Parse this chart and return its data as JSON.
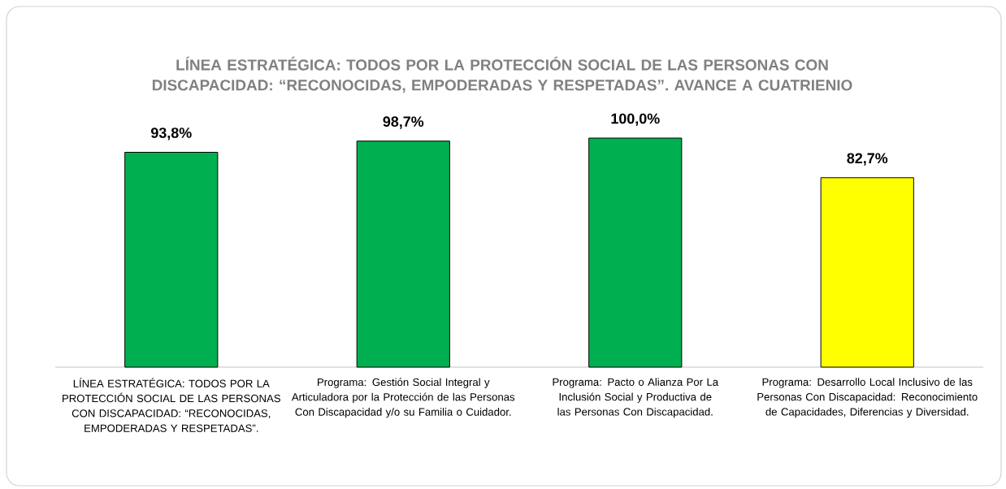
{
  "chart_data": {
    "type": "bar",
    "title": "LÍNEA ESTRATÉGICA: TODOS POR LA PROTECCIÓN SOCIAL DE LAS PERSONAS CON DISCAPACIDAD: “RECONOCIDAS, EMPODERADAS Y RESPETADAS”. AVANCE A CUATRIENIO",
    "categories": [
      "LÍNEA ESTRATÉGICA: TODOS POR LA PROTECCIÓN SOCIAL DE LAS PERSONAS CON DISCAPACIDAD: “RECONOCIDAS, EMPODERADAS Y RESPETADAS”.",
      "Programa: Gestión Social Integral y Articuladora por la Protección de las Personas Con Discapacidad y/o su Familia o Cuidador.",
      "Programa: Pacto o Alianza Por La Inclusión Social y Productiva de las Personas Con Discapacidad.",
      "Programa: Desarrollo Local Inclusivo de las Personas Con Discapacidad: Reconocimiento de Capacidades, Diferencias y Diversidad."
    ],
    "values": [
      93.8,
      98.7,
      100.0,
      82.7
    ],
    "value_labels": [
      "93,8%",
      "98,7%",
      "100,0%",
      "82,7%"
    ],
    "colors": [
      "#00b050",
      "#00b050",
      "#00b050",
      "#ffff00"
    ],
    "ylim": [
      0,
      100
    ]
  }
}
